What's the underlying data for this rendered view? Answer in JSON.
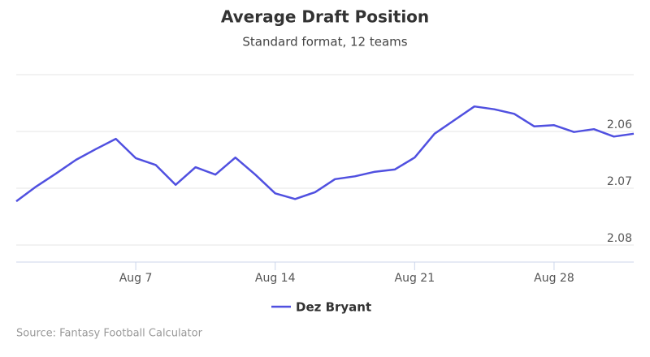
{
  "chart_data": {
    "type": "line",
    "title": "Average Draft Position",
    "subtitle": "Standard format, 12 teams",
    "source": "Source: Fantasy Football Calculator",
    "categories": [
      null,
      null,
      null,
      null,
      null,
      null,
      "Aug 7",
      null,
      null,
      null,
      null,
      null,
      null,
      "Aug 14",
      null,
      null,
      null,
      null,
      null,
      null,
      "Aug 21",
      null,
      null,
      null,
      null,
      null,
      null,
      "Aug 28",
      null,
      null,
      null,
      null
    ],
    "series": [
      {
        "name": "Dez Bryant",
        "color": "#5050e0",
        "values": [
          2.0723,
          2.0697,
          2.0674,
          2.065,
          2.0631,
          2.0613,
          2.0647,
          2.0659,
          2.0694,
          2.0663,
          2.0676,
          2.0646,
          2.0676,
          2.0709,
          2.0719,
          2.0707,
          2.0684,
          2.0679,
          2.0671,
          2.0667,
          2.0646,
          2.0604,
          2.058,
          2.0556,
          2.0561,
          2.0569,
          2.0591,
          2.0589,
          2.0601,
          2.0596,
          2.0609,
          2.0604
        ]
      }
    ],
    "ylim": [
      2.05,
      2.083
    ],
    "yticks": [
      2.06,
      2.07,
      2.08
    ],
    "y_reversed": true,
    "grid": true,
    "legend": "bottom"
  }
}
